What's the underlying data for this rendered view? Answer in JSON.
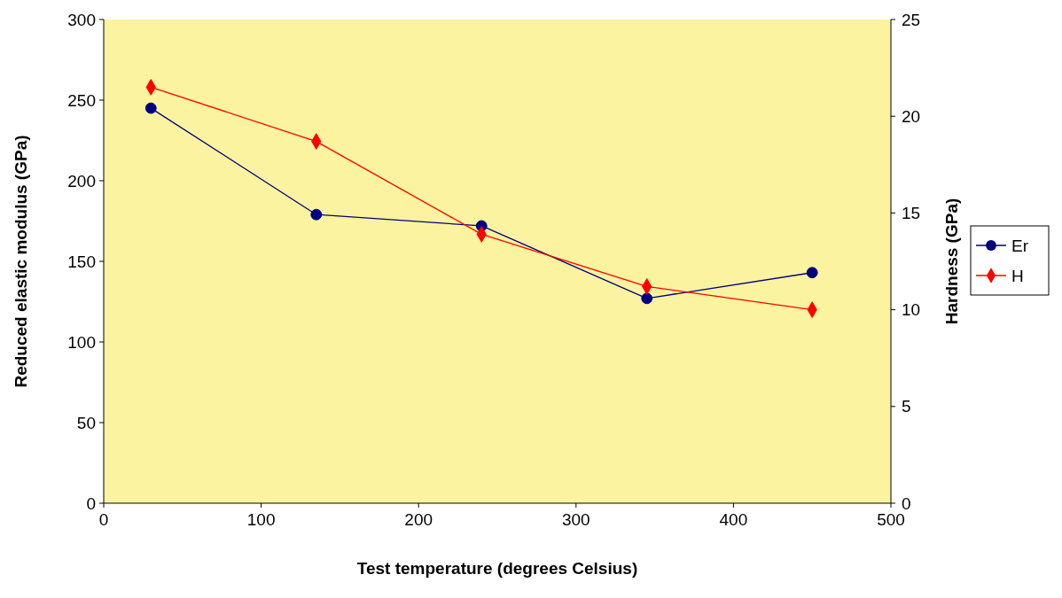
{
  "chart_data": {
    "type": "line",
    "xlabel": "Test temperature (degrees Celsius)",
    "ylabel": "Reduced elastic modulus (GPa)",
    "y2label": "Hardness (GPa)",
    "x": [
      30,
      135,
      240,
      345,
      450
    ],
    "xlim": [
      0,
      500
    ],
    "xticks": [
      0,
      100,
      200,
      300,
      400,
      500
    ],
    "ylim": [
      0,
      300
    ],
    "yticks": [
      0,
      50,
      100,
      150,
      200,
      250,
      300
    ],
    "y2lim": [
      0,
      25
    ],
    "y2ticks": [
      0,
      5,
      10,
      15,
      20,
      25
    ],
    "legend": "right",
    "grid": false,
    "series": [
      {
        "name": "Er",
        "color": "#000080",
        "marker": "circle",
        "values": [
          245,
          179,
          172,
          127,
          143
        ]
      },
      {
        "name": "H",
        "color": "#ff0000",
        "marker": "diamond",
        "axis": "y2",
        "values": [
          21.5,
          18.7,
          13.9,
          11.2,
          10
        ]
      }
    ]
  }
}
